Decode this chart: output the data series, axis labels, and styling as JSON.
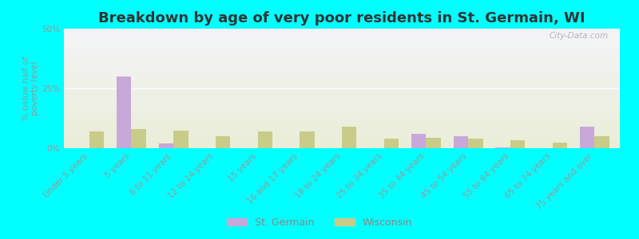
{
  "title": "Breakdown by age of very poor residents in St. Germain, WI",
  "ylabel": "% below half of\npoverty level",
  "categories": [
    "Under 5 years",
    "5 years",
    "6 to 11 years",
    "12 to 14 years",
    "15 years",
    "16 and 17 years",
    "18 to 24 years",
    "25 to 34 years",
    "35 to 44 years",
    "45 to 54 years",
    "55 to 64 years",
    "65 to 74 years",
    "75 years and over"
  ],
  "st_germain": [
    0.0,
    30.0,
    2.0,
    0.0,
    0.0,
    0.0,
    0.0,
    0.0,
    6.0,
    5.0,
    0.5,
    0.0,
    9.0
  ],
  "wisconsin": [
    7.0,
    8.0,
    7.5,
    5.0,
    7.0,
    7.0,
    9.0,
    4.0,
    4.5,
    4.0,
    3.5,
    2.5,
    5.0
  ],
  "st_germain_color": "#c8a8d8",
  "wisconsin_color": "#c8cc88",
  "ylim": [
    0,
    50
  ],
  "yticks": [
    0,
    25,
    50
  ],
  "ytick_labels": [
    "0%",
    "25%",
    "50%"
  ],
  "bg_color": "#00ffff",
  "plot_bg_top": "#f4f4f8",
  "plot_bg_bottom": "#eaeed8",
  "legend_st_germain": "St. Germain",
  "legend_wisconsin": "Wisconsin",
  "watermark": "City-Data.com",
  "bar_width": 0.35,
  "title_fontsize": 13,
  "label_fontsize": 7.5,
  "ylabel_fontsize": 7.5
}
